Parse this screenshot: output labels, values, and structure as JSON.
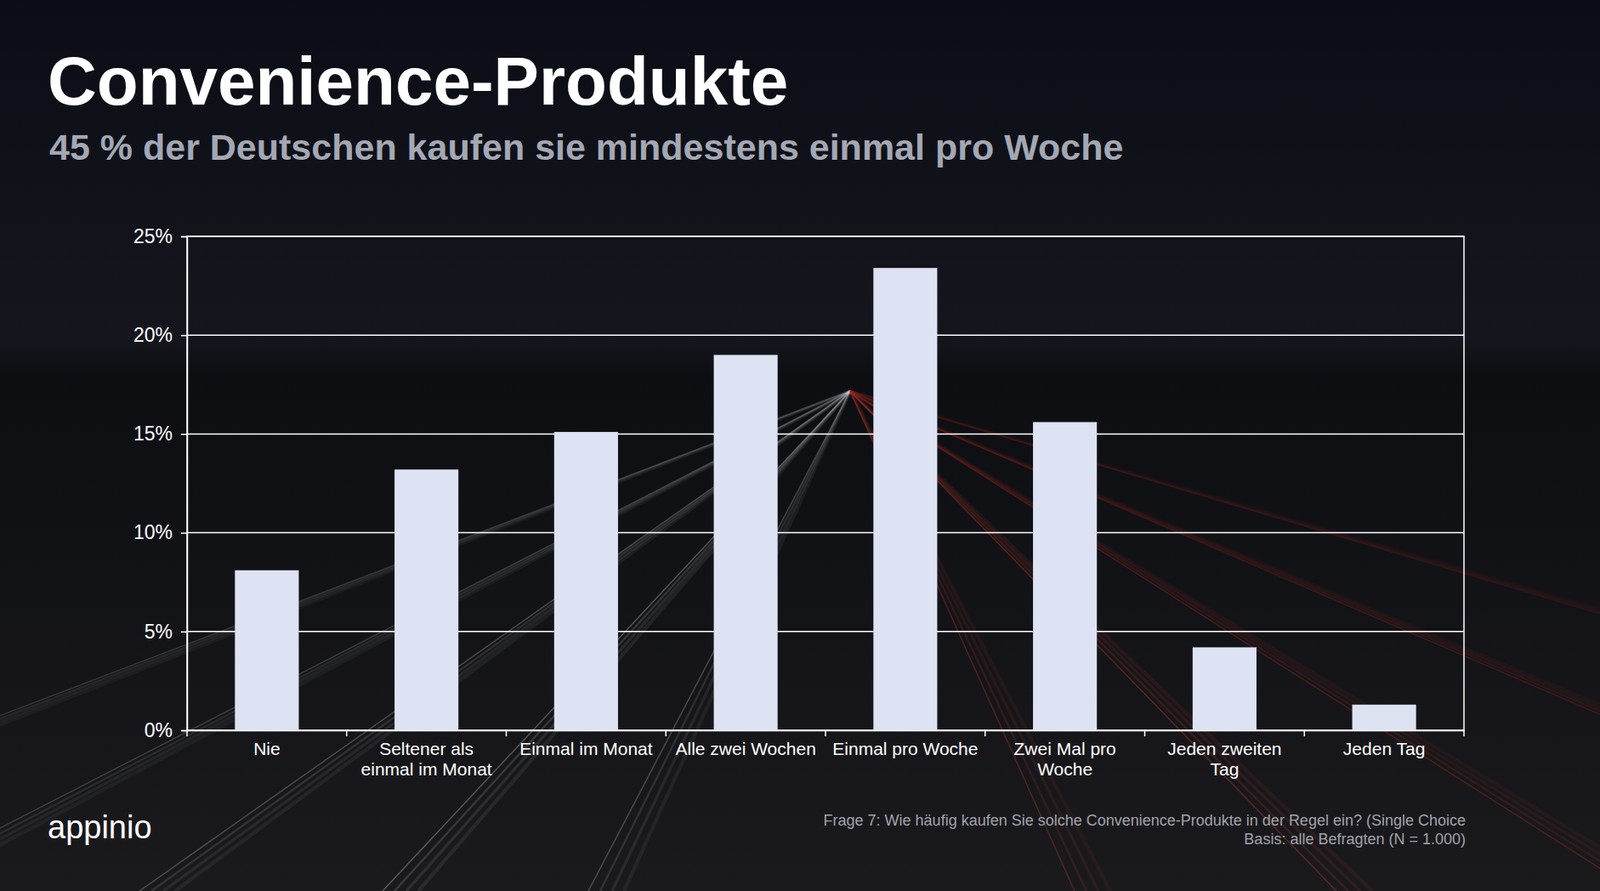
{
  "chart_data": {
    "type": "bar",
    "title": "Convenience-Produkte",
    "subtitle": "45 % der Deutschen kaufen sie mindestens einmal pro Woche",
    "categories": [
      "Nie",
      "Seltener als einmal im Monat",
      "Einmal im Monat",
      "Alle zwei Wochen",
      "Einmal pro Woche",
      "Zwei Mal pro Woche",
      "Jeden zweiten Tag",
      "Jeden Tag"
    ],
    "values": [
      8.1,
      13.2,
      15.1,
      19.0,
      23.4,
      15.6,
      4.2,
      1.3
    ],
    "color": "#dde3f3",
    "ylim": [
      0,
      25
    ],
    "yticks": [
      {
        "value": 0,
        "label": "0%"
      },
      {
        "value": 5,
        "label": "5%"
      },
      {
        "value": 10,
        "label": "10%"
      },
      {
        "value": 15,
        "label": "15%"
      },
      {
        "value": 20,
        "label": "20%"
      },
      {
        "value": 25,
        "label": "25%"
      }
    ],
    "grid": true,
    "footnote": [
      "Frage 7: Wie häufig kaufen Sie solche Convenience-Produkte in der Regel ein? (Single Choice",
      "Basis: alle Befragten (N = 1.000)"
    ],
    "logo": "appinio"
  }
}
